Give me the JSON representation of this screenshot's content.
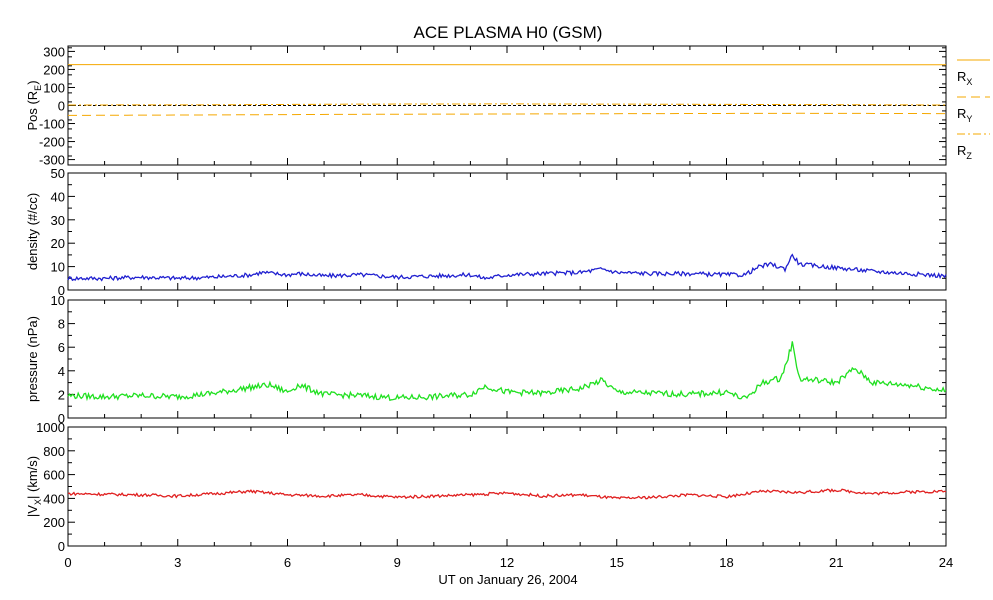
{
  "chart_data": {
    "type": "line",
    "title": "ACE PLASMA H0 (GSM)",
    "xlabel": "UT on January 26, 2004",
    "x_ticks": [
      "0",
      "3",
      "6",
      "9",
      "12",
      "15",
      "18",
      "21",
      "24"
    ],
    "xlim": [
      0,
      24
    ],
    "panels": [
      {
        "id": "position",
        "ylabel_main": "Pos (R",
        "ylabel_sub": "E",
        "ylabel_end": ")",
        "ylim": [
          -330,
          330
        ],
        "y_ticks": [
          "300",
          "200",
          "100",
          "0",
          "-100",
          "-200",
          "-300"
        ],
        "y_tick_values": [
          300,
          200,
          100,
          0,
          -100,
          -200,
          -300
        ],
        "zero_line": true,
        "series": [
          {
            "name": "R",
            "sub": "X",
            "color": "#f5a800",
            "style": "solid",
            "x": [
              0,
              4,
              8,
              12,
              16,
              20,
              24
            ],
            "values": [
              227,
              227,
              227,
              226,
              226,
              226,
              226
            ]
          },
          {
            "name": "R",
            "sub": "Y",
            "color": "#f5a800",
            "style": "dashed",
            "x": [
              0,
              4,
              8,
              12,
              16,
              20,
              24
            ],
            "values": [
              -55,
              -52,
              -49,
              -47,
              -45,
              -43,
              -45
            ]
          },
          {
            "name": "R",
            "sub": "Z",
            "color": "#f5a800",
            "style": "dashdot",
            "x": [
              0,
              4,
              8,
              12,
              16,
              20,
              24
            ],
            "values": [
              3,
              4,
              8,
              9,
              7,
              5,
              3
            ]
          }
        ]
      },
      {
        "id": "density",
        "ylabel_main": "density (#/cc)",
        "ylim": [
          0,
          50
        ],
        "y_ticks": [
          "50",
          "40",
          "30",
          "20",
          "10",
          "0"
        ],
        "y_tick_values": [
          50,
          40,
          30,
          20,
          10,
          0
        ],
        "series": [
          {
            "name": "density",
            "color": "#2020d0",
            "x": [
              0,
              1,
              2,
              3,
              4,
              5,
              5.3,
              6,
              6.3,
              7,
              8,
              9,
              10,
              11,
              11.4,
              12,
              13,
              14,
              14.6,
              15,
              16,
              17,
              18,
              18.5,
              18.9,
              19.2,
              19.6,
              19.8,
              20,
              21,
              22,
              23,
              24
            ],
            "values": [
              5,
              5,
              5.5,
              5,
              5.5,
              6.5,
              7.5,
              6.5,
              7,
              6,
              6.5,
              5.5,
              6,
              6.5,
              5,
              6.5,
              7,
              7.5,
              9,
              7.5,
              7,
              7,
              6.5,
              6.5,
              10,
              11,
              9,
              15,
              11,
              9.5,
              8,
              7,
              6
            ]
          }
        ]
      },
      {
        "id": "pressure",
        "ylabel_main": "pressure (nPa)",
        "ylim": [
          0,
          10
        ],
        "y_ticks": [
          "10",
          "8",
          "6",
          "4",
          "2",
          "0"
        ],
        "y_tick_values": [
          10,
          8,
          6,
          4,
          2,
          0
        ],
        "series": [
          {
            "name": "pressure",
            "color": "#20e020",
            "x": [
              0,
              1,
              2,
              3,
              4,
              5,
              5.5,
              6,
              6.3,
              7,
              8,
              9,
              10,
              11,
              11.4,
              12,
              13,
              14,
              14.6,
              15,
              16,
              17,
              18,
              18.5,
              19,
              19.5,
              19.8,
              20,
              20.5,
              21,
              21.5,
              22,
              23,
              24
            ],
            "values": [
              1.9,
              1.8,
              1.9,
              1.8,
              2.1,
              2.6,
              2.8,
              2.2,
              2.8,
              2.0,
              1.9,
              1.7,
              1.8,
              2.0,
              2.7,
              2.2,
              2.1,
              2.5,
              3.2,
              2.2,
              2.1,
              2.0,
              2.2,
              1.6,
              3.0,
              3.4,
              6.3,
              3.3,
              3.2,
              3.0,
              4.2,
              3.0,
              2.8,
              2.3
            ]
          }
        ]
      },
      {
        "id": "velocity",
        "ylabel_main": "|V",
        "ylabel_sub": "X",
        "ylabel_end": "| (km/s)",
        "ylim": [
          0,
          1000
        ],
        "y_ticks": [
          "1000",
          "800",
          "600",
          "400",
          "200",
          "0"
        ],
        "y_tick_values": [
          1000,
          800,
          600,
          400,
          200,
          0
        ],
        "series": [
          {
            "name": "|Vx|",
            "color": "#e02020",
            "x": [
              0,
              1,
              2,
              3,
              4,
              5,
              6,
              7,
              8,
              9,
              10,
              11,
              12,
              13,
              14,
              15,
              16,
              17,
              18,
              19,
              20,
              21,
              22,
              23,
              24
            ],
            "values": [
              440,
              435,
              430,
              420,
              440,
              460,
              430,
              420,
              430,
              410,
              420,
              430,
              445,
              420,
              430,
              400,
              410,
              430,
              415,
              460,
              450,
              470,
              440,
              455,
              460
            ]
          }
        ]
      }
    ]
  }
}
